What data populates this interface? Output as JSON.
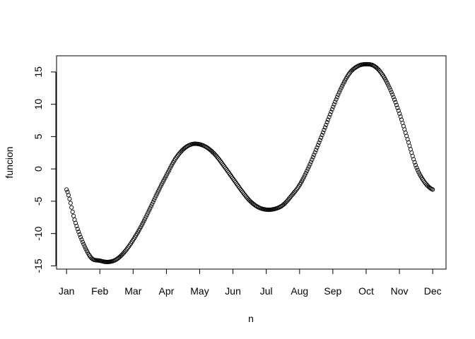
{
  "chart_data": {
    "type": "scatter",
    "marker": "open-circle",
    "grid": false,
    "xlabel": "n",
    "ylabel": "funcion",
    "title": "",
    "x_ticks": [
      "Jan",
      "Feb",
      "Mar",
      "Apr",
      "May",
      "Jun",
      "Jul",
      "Aug",
      "Sep",
      "Oct",
      "Nov",
      "Dec"
    ],
    "y_ticks": [
      -15,
      -10,
      -5,
      0,
      5,
      10,
      15
    ],
    "xlim": [
      0.7,
      12.4
    ],
    "ylim": [
      -15.5,
      17.5
    ],
    "series": [
      {
        "color": "#000000",
        "points": [
          [
            1.0,
            -3.2
          ],
          [
            1.25,
            -8.0
          ],
          [
            1.5,
            -11.5
          ],
          [
            1.75,
            -13.8
          ],
          [
            2.0,
            -14.2
          ],
          [
            2.25,
            -14.4
          ],
          [
            2.5,
            -14.0
          ],
          [
            2.75,
            -12.8
          ],
          [
            3.0,
            -11.0
          ],
          [
            3.25,
            -8.8
          ],
          [
            3.5,
            -6.2
          ],
          [
            3.75,
            -3.5
          ],
          [
            4.0,
            -1.0
          ],
          [
            4.25,
            1.4
          ],
          [
            4.5,
            3.0
          ],
          [
            4.75,
            3.8
          ],
          [
            5.0,
            3.8
          ],
          [
            5.25,
            3.2
          ],
          [
            5.5,
            2.0
          ],
          [
            5.75,
            0.3
          ],
          [
            6.0,
            -1.5
          ],
          [
            6.25,
            -3.3
          ],
          [
            6.5,
            -4.9
          ],
          [
            6.75,
            -5.9
          ],
          [
            7.0,
            -6.3
          ],
          [
            7.25,
            -6.2
          ],
          [
            7.5,
            -5.6
          ],
          [
            7.75,
            -4.2
          ],
          [
            8.0,
            -2.5
          ],
          [
            8.25,
            0.0
          ],
          [
            8.5,
            3.0
          ],
          [
            8.75,
            6.2
          ],
          [
            9.0,
            9.5
          ],
          [
            9.25,
            12.5
          ],
          [
            9.5,
            14.8
          ],
          [
            9.75,
            15.9
          ],
          [
            10.0,
            16.2
          ],
          [
            10.25,
            15.9
          ],
          [
            10.5,
            14.5
          ],
          [
            10.75,
            12.0
          ],
          [
            11.0,
            8.6
          ],
          [
            11.25,
            4.5
          ],
          [
            11.5,
            0.4
          ],
          [
            11.75,
            -2.0
          ],
          [
            12.0,
            -3.2
          ]
        ]
      }
    ]
  }
}
